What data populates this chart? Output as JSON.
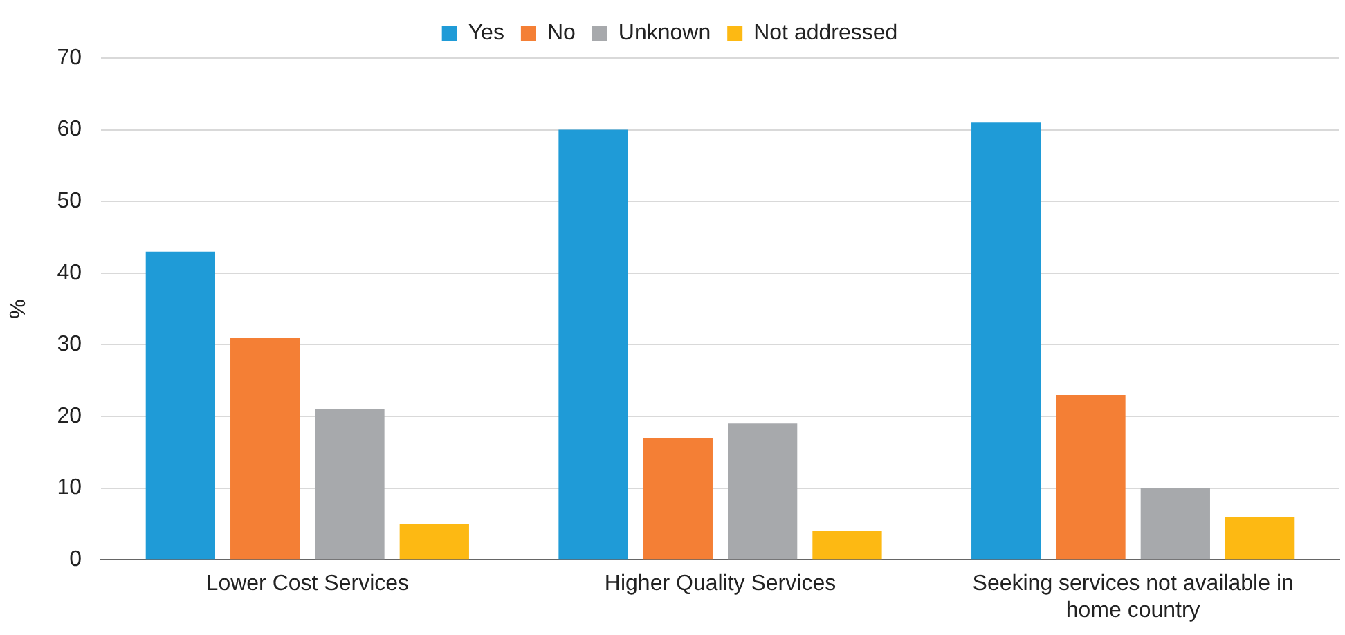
{
  "chart_data": {
    "type": "bar",
    "ylabel": "%",
    "categories": [
      "Lower Cost Services",
      "Higher Quality Services",
      "Seeking services not available in home country"
    ],
    "series": [
      {
        "name": "Yes",
        "color": "#1f9bd7",
        "values": [
          43,
          60,
          61
        ]
      },
      {
        "name": "No",
        "color": "#f47f35",
        "values": [
          31,
          17,
          23
        ]
      },
      {
        "name": "Unknown",
        "color": "#a7a9ac",
        "values": [
          21,
          19,
          10
        ]
      },
      {
        "name": "Not addressed",
        "color": "#fdb913",
        "values": [
          5,
          4,
          6
        ]
      }
    ],
    "ylim": [
      0,
      70
    ],
    "yticks": [
      0,
      10,
      20,
      30,
      40,
      50,
      60,
      70
    ],
    "grid": "y",
    "legend": "top"
  }
}
